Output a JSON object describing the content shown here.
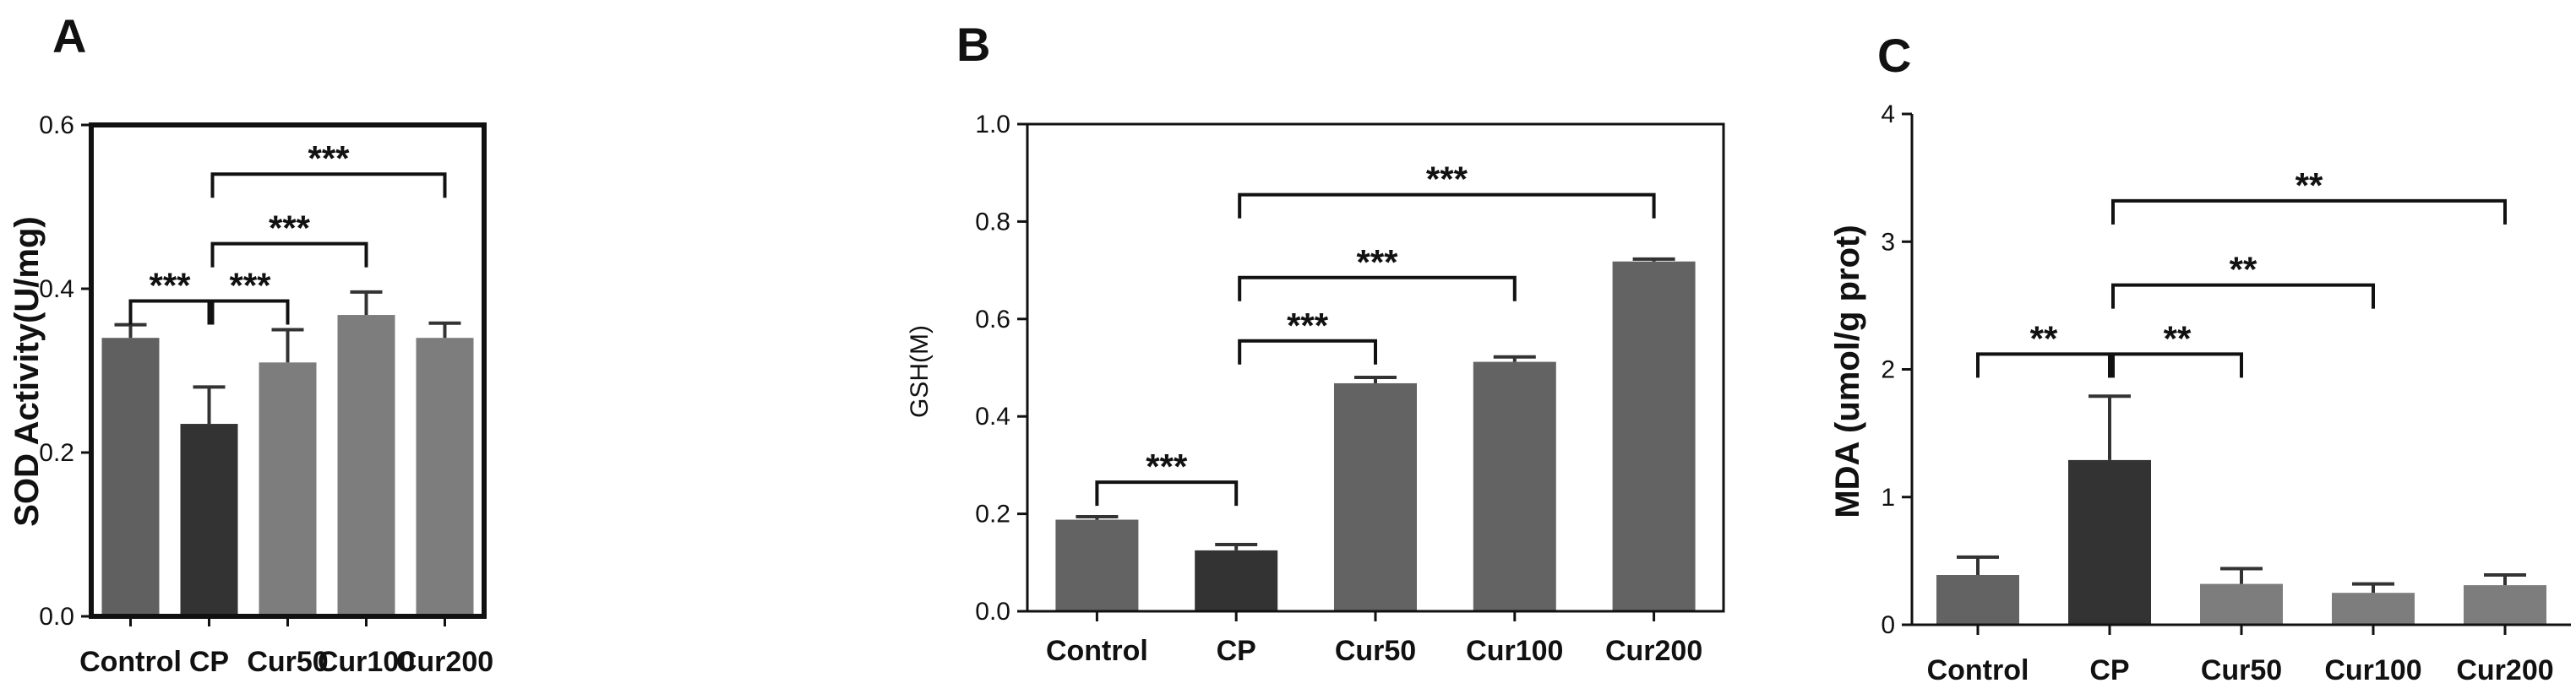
{
  "chart_data": [
    {
      "panel": "A",
      "type": "bar",
      "title": "",
      "xlabel": "",
      "ylabel": "SOD Activity(U/mg)",
      "ylim": [
        0,
        0.6
      ],
      "yticks": [
        0.0,
        0.2,
        0.4,
        0.6
      ],
      "ytick_labels": [
        "0.0",
        "0.2",
        "0.4",
        "0.6"
      ],
      "categories": [
        "Control",
        "CP",
        "Cur50",
        "Cur100",
        "Cur200"
      ],
      "values": [
        0.34,
        0.235,
        0.31,
        0.368,
        0.34
      ],
      "errors": [
        0.016,
        0.045,
        0.04,
        0.028,
        0.018
      ],
      "colors": [
        "#606060",
        "#333333",
        "#7d7d7d",
        "#7d7d7d",
        "#7d7d7d"
      ],
      "grid": false,
      "significance": [
        {
          "from": 0,
          "to": 1,
          "level": 0.385,
          "label": "***"
        },
        {
          "from": 1,
          "to": 2,
          "level": 0.385,
          "label": "***"
        },
        {
          "from": 1,
          "to": 3,
          "level": 0.455,
          "label": "***"
        },
        {
          "from": 1,
          "to": 4,
          "level": 0.54,
          "label": "***"
        }
      ]
    },
    {
      "panel": "B",
      "type": "bar",
      "title": "",
      "xlabel": "",
      "ylabel": "GSH(M)",
      "ylim": [
        0,
        1.0
      ],
      "yticks": [
        0.0,
        0.2,
        0.4,
        0.6,
        0.8,
        1.0
      ],
      "ytick_labels": [
        "0.0",
        "0.2",
        "0.4",
        "0.6",
        "0.8",
        "1.0"
      ],
      "categories": [
        "Control",
        "CP",
        "Cur50",
        "Cur100",
        "Cur200"
      ],
      "values": [
        0.188,
        0.125,
        0.468,
        0.512,
        0.718
      ],
      "errors": [
        0.006,
        0.012,
        0.012,
        0.01,
        0.005
      ],
      "colors": [
        "#636363",
        "#333333",
        "#636363",
        "#636363",
        "#636363"
      ],
      "grid": false,
      "significance": [
        {
          "from": 0,
          "to": 1,
          "level": 0.265,
          "label": "***"
        },
        {
          "from": 1,
          "to": 2,
          "level": 0.555,
          "label": "***"
        },
        {
          "from": 1,
          "to": 3,
          "level": 0.685,
          "label": "***"
        },
        {
          "from": 1,
          "to": 4,
          "level": 0.855,
          "label": "***"
        }
      ]
    },
    {
      "panel": "C",
      "type": "bar",
      "title": "",
      "xlabel": "",
      "ylabel": "MDA (umol/g prot)",
      "ylim": [
        0,
        4
      ],
      "yticks": [
        0,
        1,
        2,
        3,
        4
      ],
      "ytick_labels": [
        "0",
        "1",
        "2",
        "3",
        "4"
      ],
      "categories": [
        "Control",
        "CP",
        "Cur50",
        "Cur100",
        "Cur200"
      ],
      "values": [
        0.39,
        1.29,
        0.32,
        0.25,
        0.31
      ],
      "errors": [
        0.14,
        0.5,
        0.12,
        0.07,
        0.08
      ],
      "colors": [
        "#636363",
        "#333333",
        "#7d7d7d",
        "#7d7d7d",
        "#7d7d7d"
      ],
      "grid": false,
      "significance": [
        {
          "from": 0,
          "to": 1,
          "level": 2.12,
          "label": "**"
        },
        {
          "from": 1,
          "to": 2,
          "level": 2.12,
          "label": "**"
        },
        {
          "from": 1,
          "to": 3,
          "level": 2.66,
          "label": "**"
        },
        {
          "from": 1,
          "to": 4,
          "level": 3.32,
          "label": "**"
        }
      ]
    }
  ]
}
